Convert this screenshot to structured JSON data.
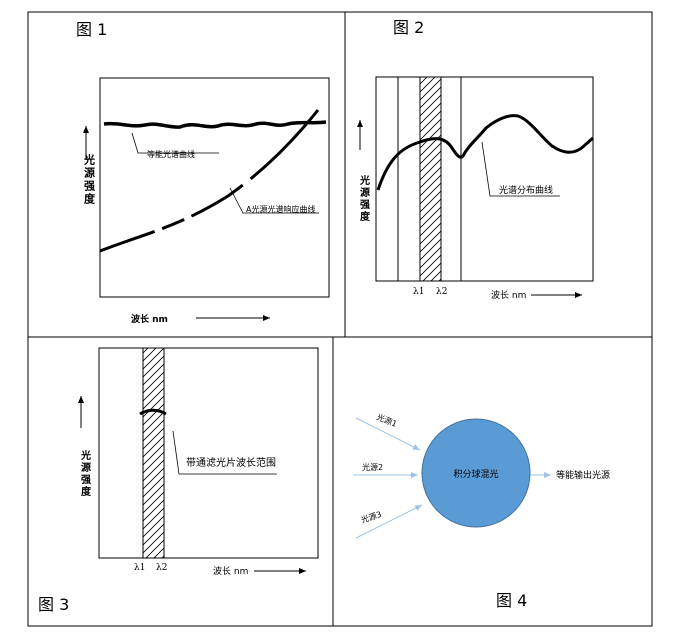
{
  "figure1": {
    "label": "图 1",
    "ylabel": "光源强度",
    "xlabel": "波长 nm",
    "annotation_equal": "等能光谱曲线",
    "annotation_response": "A光源光谱响应曲线"
  },
  "figure2": {
    "label": "图 2",
    "ylabel": "光源强度",
    "xlabel": "波长 nm",
    "annotation": "光谱分布曲线",
    "lambda1": "λ1",
    "lambda2": "λ2"
  },
  "figure3": {
    "label": "图 3",
    "ylabel": "光源强度",
    "xlabel": "波长 nm",
    "annotation": "带通滤光片波长范围",
    "lambda1": "λ1",
    "lambda2": "λ2"
  },
  "figure4": {
    "label": "图 4",
    "center": "积分球混光",
    "source1": "光源1",
    "source2": "光源2",
    "source3": "光源3",
    "output": "等能输出光源",
    "circle_color": "#5b9bd5",
    "arrow_color": "#9dc3e6"
  }
}
